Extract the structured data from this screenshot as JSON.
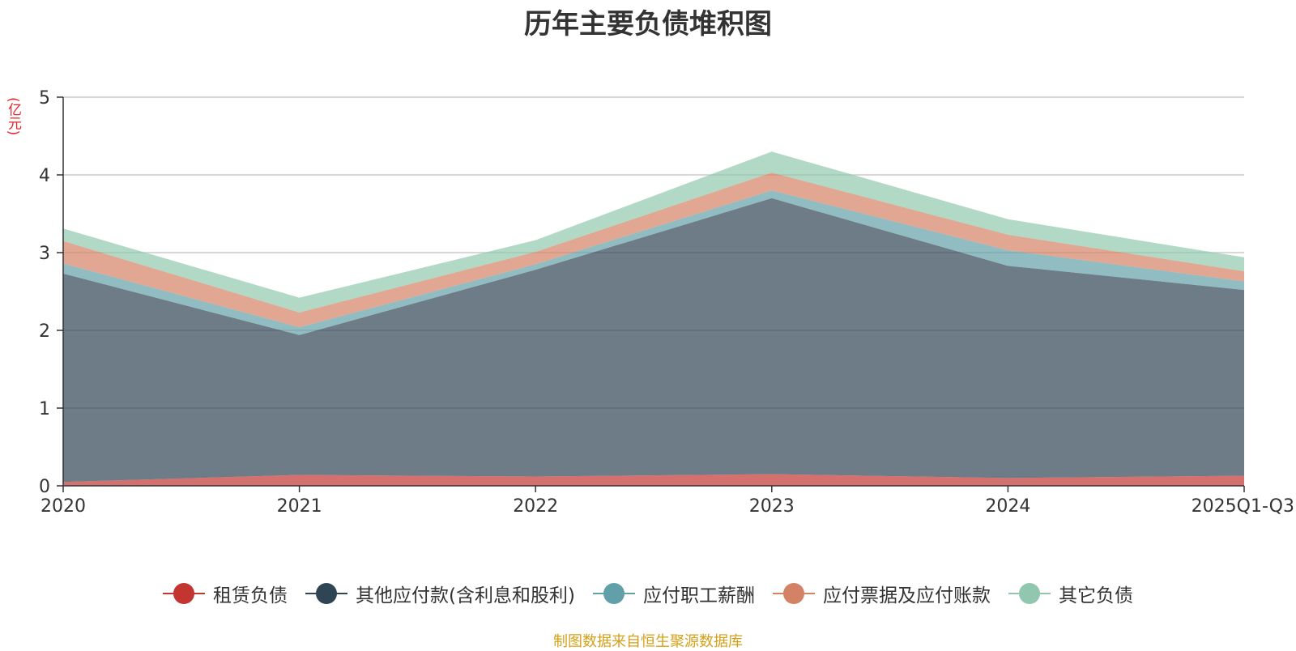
{
  "chart_data": {
    "type": "area",
    "stacked": true,
    "title": "历年主要负债堆积图",
    "ylabel": "(亿元)",
    "xlabel": "",
    "ylim": [
      0,
      5
    ],
    "yticks": [
      0,
      1,
      2,
      3,
      4,
      5
    ],
    "grid": true,
    "categories": [
      "2020",
      "2021",
      "2022",
      "2023",
      "2024",
      "2025Q1-Q3"
    ],
    "series": [
      {
        "name": "租赁负债",
        "color": "#c23531",
        "values": [
          0.05,
          0.14,
          0.12,
          0.15,
          0.1,
          0.13
        ]
      },
      {
        "name": "其他应付款(含利息和股利)",
        "color": "#2f4554",
        "values": [
          2.68,
          1.8,
          2.66,
          3.55,
          2.73,
          2.39
        ]
      },
      {
        "name": "应付职工薪酬",
        "color": "#61a0a8",
        "values": [
          0.13,
          0.1,
          0.07,
          0.1,
          0.2,
          0.11
        ]
      },
      {
        "name": "应付票据及应付账款",
        "color": "#d48265",
        "values": [
          0.29,
          0.19,
          0.16,
          0.23,
          0.2,
          0.13
        ]
      },
      {
        "name": "其它负债",
        "color": "#91c7ae",
        "values": [
          0.16,
          0.19,
          0.15,
          0.27,
          0.2,
          0.18
        ]
      }
    ],
    "legend_position": "bottom"
  },
  "footer": {
    "source": "制图数据来自恒生聚源数据库"
  }
}
